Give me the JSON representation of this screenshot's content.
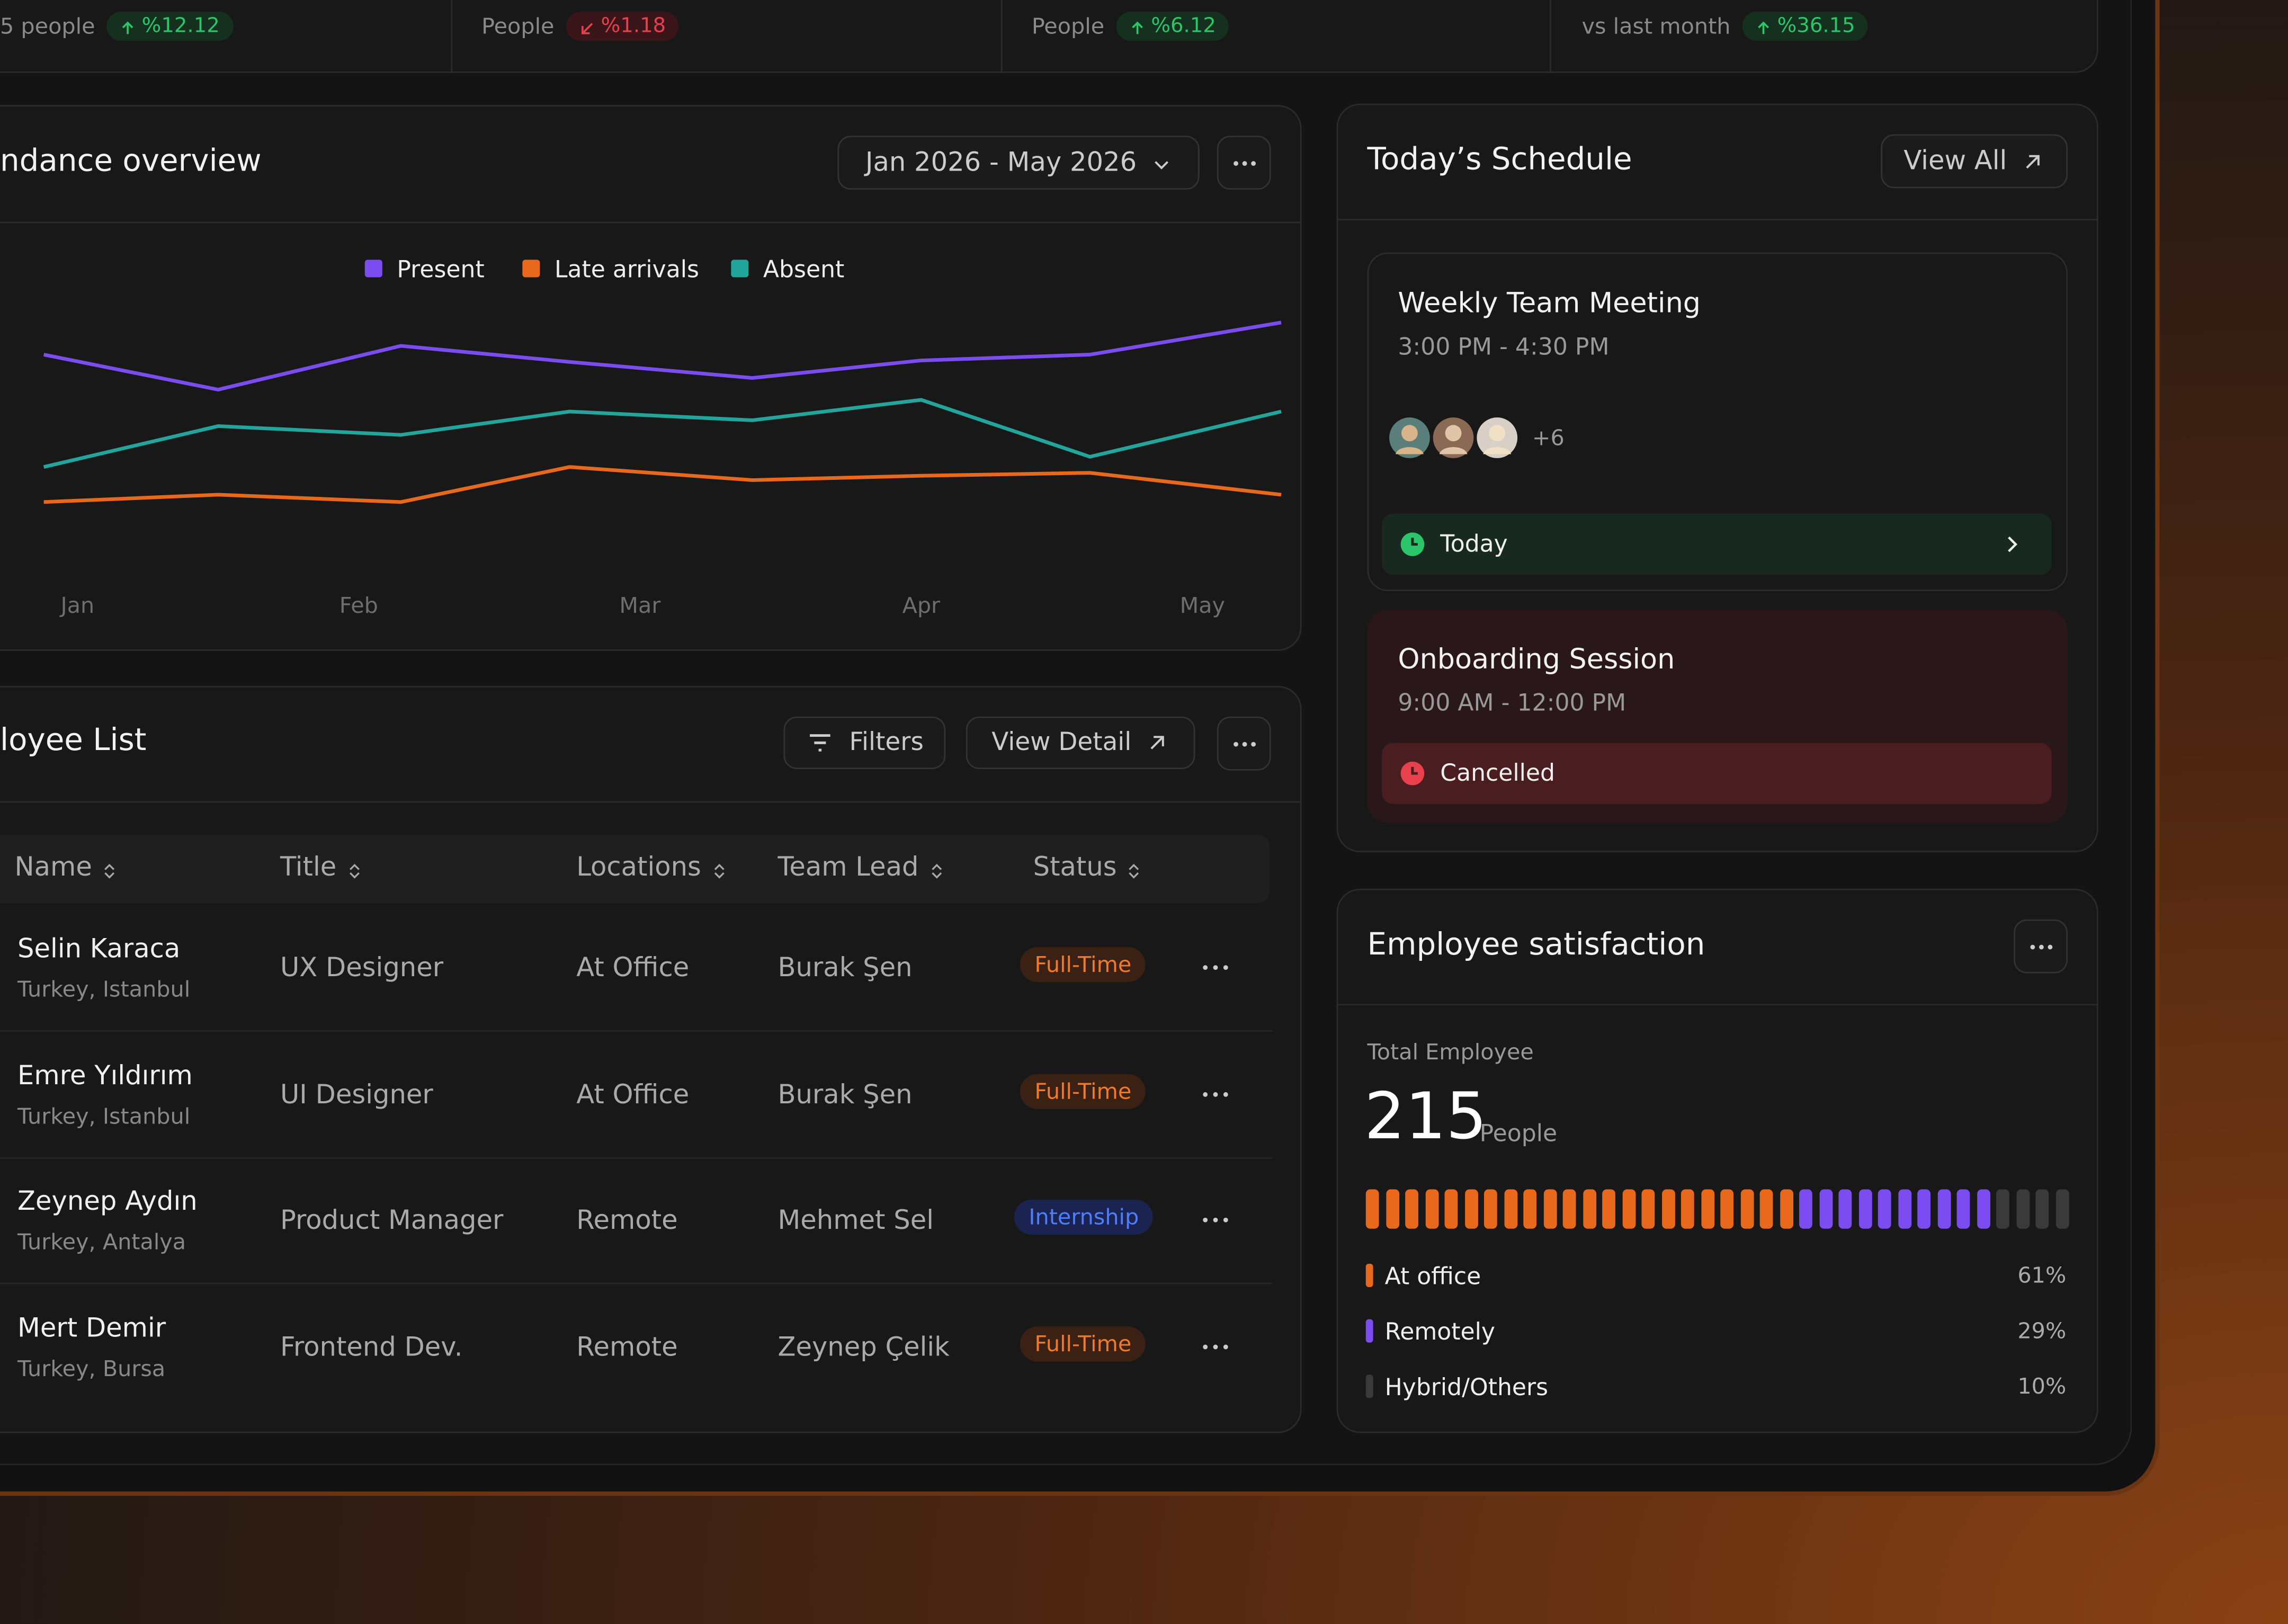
{
  "stats": [
    {
      "label": "5 people",
      "change": "%12.12",
      "direction": "up"
    },
    {
      "label": "People",
      "change": "%1.18",
      "direction": "down"
    },
    {
      "label": "People",
      "change": "%6.12",
      "direction": "up"
    },
    {
      "label": "vs last month",
      "change": "%36.15",
      "direction": "up"
    }
  ],
  "attendance": {
    "title": "ndance overview",
    "range": "Jan 2026 - May 2026",
    "chart_data": {
      "type": "line",
      "x": [
        -0.12,
        0.5,
        1.15,
        1.75,
        2.4,
        3.0,
        3.6,
        4.28
      ],
      "xlim": [
        -0.12,
        4.28
      ],
      "xticks": [
        {
          "value": 0,
          "label": "Jan"
        },
        {
          "value": 1,
          "label": "Feb"
        },
        {
          "value": 2,
          "label": "Mar"
        },
        {
          "value": 3,
          "label": "Apr"
        },
        {
          "value": 4,
          "label": "May"
        }
      ],
      "ylim": [
        0,
        100
      ],
      "legend": "top",
      "series": [
        {
          "name": "Present",
          "color": "#7b4cf0",
          "values": [
            78.5,
            66.5,
            81.5,
            76,
            70.5,
            76.5,
            78.5,
            89.5
          ]
        },
        {
          "name": "Late arrivals",
          "color": "#e8681c",
          "values": [
            28,
            30.5,
            28,
            40,
            35.5,
            37,
            38,
            30.5
          ]
        },
        {
          "name": "Absent",
          "color": "#22a59a",
          "values": [
            40,
            54,
            51,
            59,
            56,
            63,
            43.5,
            59
          ]
        }
      ]
    }
  },
  "employees": {
    "title": "loyee List",
    "filters": "Filters",
    "view_detail": "View Detail",
    "columns": [
      "Name",
      "Title",
      "Locations",
      "Team Lead",
      "Status"
    ],
    "rows": [
      {
        "name": "Selin Karaca",
        "place": "Turkey, Istanbul",
        "title": "UX Designer",
        "location": "At Office",
        "lead": "Burak Şen",
        "status": "Full-Time"
      },
      {
        "name": "Emre Yıldırım",
        "place": "Turkey, Istanbul",
        "title": "UI Designer",
        "location": "At Office",
        "lead": "Burak Şen",
        "status": "Full-Time"
      },
      {
        "name": "Zeynep Aydın",
        "place": "Turkey, Antalya",
        "title": "Product Manager",
        "location": "Remote",
        "lead": "Mehmet Sel",
        "status": "Internship"
      },
      {
        "name": "Mert Demir",
        "place": "Turkey, Bursa",
        "title": "Frontend Dev.",
        "location": "Remote",
        "lead": "Zeynep Çelik",
        "status": "Full-Time"
      }
    ]
  },
  "schedule": {
    "title": "Today’s Schedule",
    "view_all": "View All",
    "events": [
      {
        "title": "Weekly Team Meeting",
        "time": "3:00 PM - 4:30 PM",
        "extra": "+6",
        "state": "Today"
      },
      {
        "title": "Onboarding Session",
        "time": "9:00 AM - 12:00 PM",
        "state": "Cancelled"
      }
    ]
  },
  "satisfaction": {
    "title": "Employee satisfaction",
    "total_label": "Total Employee",
    "total": "215",
    "unit": "People",
    "chart_data": {
      "type": "segments",
      "categories": [
        "At office",
        "Remotely",
        "Hybrid/Others"
      ],
      "values": [
        61,
        29,
        10
      ],
      "value_labels": [
        "61%",
        "29%",
        "10%"
      ],
      "colors": [
        "#e8681c",
        "#7b4cf0",
        "#3a3a3a"
      ]
    }
  }
}
